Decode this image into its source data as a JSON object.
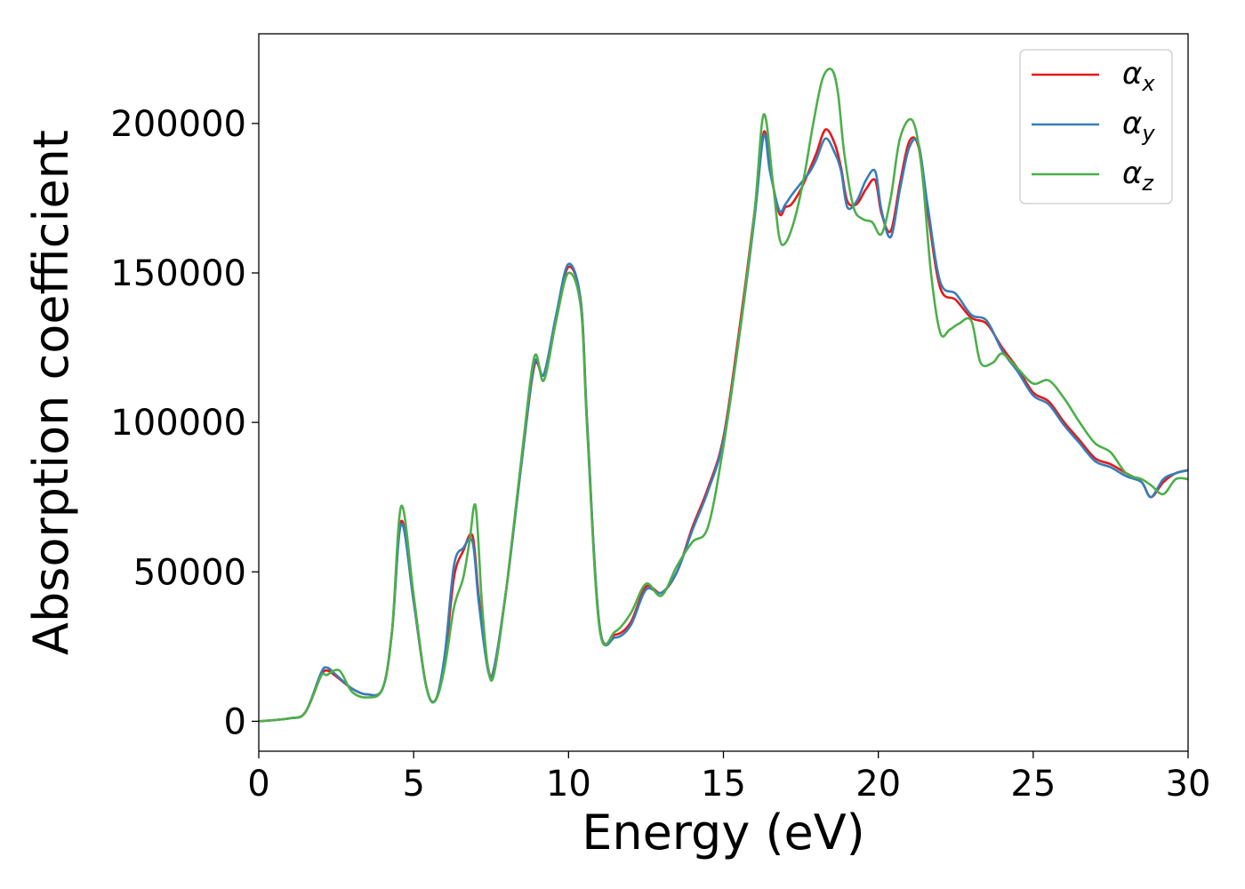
{
  "chart_data": {
    "type": "line",
    "title": "",
    "xlabel": "Energy (eV)",
    "ylabel": "Absorption coefficient",
    "xlim": [
      0,
      30
    ],
    "ylim": [
      -10000,
      230000
    ],
    "xticks": [
      0,
      5,
      10,
      15,
      20,
      25,
      30
    ],
    "yticks": [
      0,
      50000,
      100000,
      150000,
      200000
    ],
    "grid": false,
    "legend": "top-right",
    "series": [
      {
        "name": "α",
        "sub": "x",
        "color": "#e41a1c",
        "x": [
          0,
          1,
          1.5,
          2,
          2.2,
          2.5,
          3,
          3.5,
          4,
          4.3,
          4.6,
          5,
          5.4,
          5.7,
          6,
          6.3,
          6.6,
          6.9,
          7.1,
          7.4,
          7.6,
          8,
          8.5,
          8.9,
          9.2,
          9.6,
          10,
          10.4,
          10.6,
          11,
          11.5,
          12,
          12.5,
          13,
          13.5,
          14,
          14.5,
          15,
          15.5,
          16,
          16.3,
          16.5,
          16.8,
          17,
          17.2,
          17.5,
          17.8,
          18,
          18.3,
          18.6,
          18.8,
          19,
          19.3,
          19.6,
          19.9,
          20.1,
          20.4,
          20.7,
          21,
          21.3,
          21.6,
          22,
          22.5,
          23,
          23.5,
          24,
          24.5,
          25,
          25.5,
          26,
          26.5,
          27,
          27.5,
          28,
          28.5,
          28.8,
          29.2,
          29.6,
          30
        ],
        "y": [
          0,
          1000,
          3000,
          15000,
          17000,
          15000,
          11000,
          9000,
          11000,
          30000,
          67000,
          40000,
          12000,
          7000,
          20000,
          48000,
          57000,
          62000,
          42000,
          18000,
          18000,
          45000,
          88000,
          119000,
          116000,
          135000,
          152000,
          140000,
          100000,
          32000,
          29000,
          33000,
          45000,
          43000,
          50000,
          65000,
          78000,
          95000,
          130000,
          170000,
          197000,
          185000,
          170000,
          172000,
          173000,
          178000,
          185000,
          190000,
          198000,
          193000,
          185000,
          174000,
          173000,
          178000,
          181000,
          170000,
          164000,
          180000,
          194000,
          192000,
          170000,
          145000,
          141000,
          135000,
          133000,
          125000,
          118000,
          110000,
          107000,
          100000,
          94000,
          88000,
          86000,
          83000,
          80000,
          75000,
          80000,
          83000,
          84000
        ]
      },
      {
        "name": "α",
        "sub": "y",
        "color": "#377eb8",
        "x": [
          0,
          1,
          1.5,
          2,
          2.2,
          2.5,
          3,
          3.5,
          4,
          4.3,
          4.6,
          5,
          5.4,
          5.7,
          6,
          6.3,
          6.6,
          6.9,
          7.1,
          7.4,
          7.6,
          8,
          8.5,
          8.9,
          9.2,
          9.6,
          10,
          10.4,
          10.6,
          11,
          11.5,
          12,
          12.5,
          13,
          13.5,
          14,
          14.5,
          15,
          15.5,
          16,
          16.3,
          16.5,
          16.8,
          17,
          17.2,
          17.5,
          17.8,
          18,
          18.3,
          18.6,
          18.8,
          19,
          19.3,
          19.6,
          19.9,
          20.1,
          20.4,
          20.7,
          21,
          21.3,
          21.6,
          22,
          22.5,
          23,
          23.5,
          24,
          24.5,
          25,
          25.5,
          26,
          26.5,
          27,
          27.5,
          28,
          28.5,
          28.8,
          29.2,
          29.6,
          30
        ],
        "y": [
          0,
          1000,
          3000,
          16000,
          18000,
          15500,
          11000,
          9000,
          11000,
          30000,
          66000,
          40000,
          12000,
          7000,
          22000,
          52000,
          58000,
          60000,
          40000,
          17000,
          18000,
          45000,
          88000,
          120000,
          116000,
          136000,
          153000,
          140000,
          100000,
          32000,
          28000,
          32000,
          44000,
          43000,
          50000,
          64000,
          77000,
          94000,
          128000,
          168000,
          196000,
          184000,
          171000,
          173000,
          176000,
          180000,
          184000,
          188000,
          195000,
          190000,
          184000,
          172000,
          174000,
          181000,
          184000,
          171000,
          162000,
          178000,
          192000,
          193000,
          172000,
          147000,
          143000,
          136000,
          134000,
          124000,
          117000,
          109000,
          106000,
          99000,
          93000,
          87000,
          85000,
          82000,
          80000,
          75000,
          81000,
          83000,
          84000
        ]
      },
      {
        "name": "α",
        "sub": "z",
        "color": "#4daf4a",
        "x": [
          0,
          1,
          1.5,
          2,
          2.2,
          2.6,
          3,
          3.5,
          4,
          4.3,
          4.6,
          5,
          5.4,
          5.7,
          6,
          6.3,
          6.6,
          6.8,
          7,
          7.2,
          7.4,
          7.6,
          8,
          8.5,
          8.9,
          9.2,
          9.6,
          10,
          10.4,
          10.6,
          11,
          11.5,
          12,
          12.5,
          13,
          13.5,
          14,
          14.5,
          15,
          15.5,
          16,
          16.3,
          16.6,
          16.8,
          17,
          17.3,
          17.6,
          17.9,
          18.2,
          18.5,
          18.7,
          18.9,
          19.2,
          19.5,
          19.8,
          20.1,
          20.4,
          20.7,
          21.1,
          21.4,
          21.7,
          22,
          22.3,
          22.6,
          23,
          23.3,
          23.7,
          24,
          24.5,
          25,
          25.5,
          26,
          26.5,
          27,
          27.5,
          28,
          28.5,
          28.8,
          29.2,
          29.6,
          30
        ],
        "y": [
          0,
          1000,
          3000,
          15000,
          15500,
          17000,
          10000,
          8000,
          11000,
          30000,
          72000,
          42000,
          12000,
          7000,
          18000,
          38000,
          48000,
          60000,
          72000,
          40000,
          18000,
          16000,
          45000,
          90000,
          122000,
          114000,
          134000,
          150000,
          138000,
          98000,
          31000,
          30000,
          36000,
          46000,
          42000,
          52000,
          60000,
          65000,
          92000,
          128000,
          170000,
          203000,
          180000,
          162000,
          160000,
          168000,
          182000,
          200000,
          215000,
          218000,
          210000,
          190000,
          172000,
          168000,
          167000,
          163000,
          175000,
          195000,
          201000,
          185000,
          150000,
          130000,
          131000,
          133000,
          134000,
          120000,
          120000,
          123000,
          118000,
          113000,
          114000,
          108000,
          100000,
          93000,
          90000,
          83000,
          81000,
          79000,
          76000,
          81000,
          81000
        ]
      }
    ]
  }
}
